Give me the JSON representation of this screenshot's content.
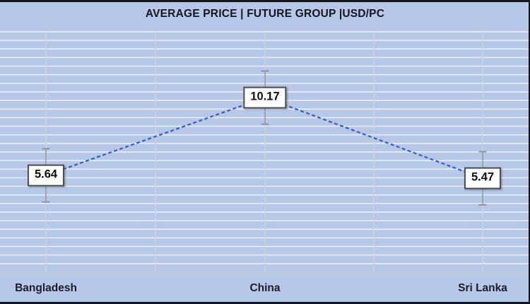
{
  "chart_data": {
    "type": "line",
    "title": "AVERAGE PRICE | FUTURE GROUP |USD/PC",
    "categories": [
      "Bangladesh",
      "China",
      "Sri Lanka"
    ],
    "values": [
      5.64,
      10.17,
      5.47
    ],
    "data_labels": [
      "5.64",
      "10.17",
      "5.47"
    ],
    "xlabel": "",
    "ylabel": "",
    "ylim": [
      0,
      14
    ],
    "gridline_step": 0.5,
    "grid": "on",
    "legend_position": "none",
    "line_style": "dashed",
    "error_bar_half": 1.55,
    "colors": {
      "background": "#b6c7e8",
      "gridline_horizontal": "#e7ecf6",
      "gridline_vertical": "#ccd3e2",
      "axis_line": "#c2c9d9",
      "series_line": "#3a5fc8",
      "error_bar": "#8e949e",
      "label_box_bg": "#ffffff",
      "label_box_border": "#4a4a4a",
      "title_text": "#15151f",
      "axis_text": "#1d1d26",
      "chart_border": "#14161c"
    }
  }
}
